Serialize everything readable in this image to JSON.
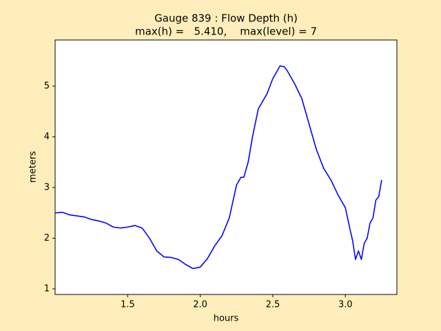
{
  "chart_data": {
    "type": "line",
    "title": "Gauge 839 : Flow Depth (h)",
    "subtitle": "max(h) =   5.410,    max(level) = 7",
    "xlabel": "hours",
    "ylabel": "meters",
    "x": [
      1.0,
      1.05,
      1.1,
      1.15,
      1.2,
      1.25,
      1.3,
      1.35,
      1.4,
      1.45,
      1.5,
      1.55,
      1.6,
      1.65,
      1.7,
      1.75,
      1.8,
      1.85,
      1.9,
      1.95,
      2.0,
      2.05,
      2.1,
      2.15,
      2.2,
      2.25,
      2.28,
      2.3,
      2.33,
      2.36,
      2.4,
      2.43,
      2.46,
      2.5,
      2.55,
      2.58,
      2.6,
      2.65,
      2.7,
      2.75,
      2.8,
      2.85,
      2.9,
      2.95,
      3.0,
      3.03,
      3.05,
      3.07,
      3.09,
      3.11,
      3.13,
      3.15,
      3.17,
      3.19,
      3.21,
      3.23,
      3.25
    ],
    "series": [
      {
        "name": "h",
        "color": "#0000ff",
        "values": [
          2.5,
          2.51,
          2.46,
          2.44,
          2.42,
          2.37,
          2.34,
          2.3,
          2.22,
          2.2,
          2.22,
          2.25,
          2.2,
          2.0,
          1.75,
          1.63,
          1.62,
          1.58,
          1.48,
          1.4,
          1.43,
          1.6,
          1.85,
          2.05,
          2.4,
          3.05,
          3.2,
          3.2,
          3.5,
          4.0,
          4.55,
          4.7,
          4.85,
          5.15,
          5.4,
          5.38,
          5.3,
          5.05,
          4.75,
          4.25,
          3.75,
          3.38,
          3.15,
          2.85,
          2.6,
          2.2,
          1.95,
          1.58,
          1.75,
          1.58,
          1.9,
          2.0,
          2.3,
          2.4,
          2.75,
          2.82,
          3.15
        ]
      }
    ],
    "xlim": [
      1.0,
      3.355
    ],
    "xticks": [
      1.5,
      {
        "value": 2,
        "label": "2.0"
      },
      2.5,
      {
        "value": 3,
        "label": "3.0"
      }
    ],
    "ylim": [
      0.89,
      5.91
    ],
    "yticks": [
      1,
      2,
      3,
      4,
      5
    ],
    "grid": false
  }
}
